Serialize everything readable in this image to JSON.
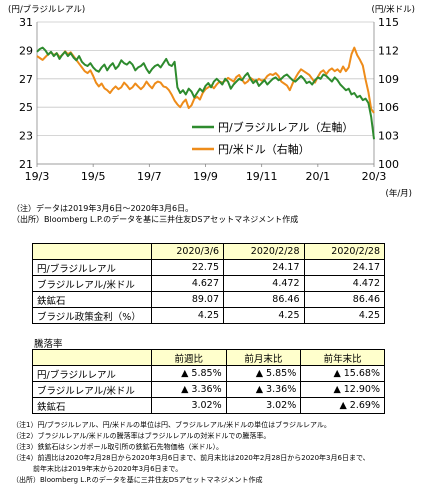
{
  "chart_data": {
    "type": "line",
    "left_axis_unit": "(円/ブラジルレアル)",
    "right_axis_unit": "(円/米ドル)",
    "x_axis_unit": "(年/月)",
    "left_ylim": [
      21,
      31
    ],
    "left_ticks": [
      "21",
      "23",
      "25",
      "27",
      "29",
      "31"
    ],
    "right_ylim": [
      100,
      115
    ],
    "right_ticks": [
      "100",
      "103",
      "106",
      "109",
      "112",
      "115"
    ],
    "x_ticks": [
      "19/3",
      "19/5",
      "19/7",
      "19/9",
      "19/11",
      "20/1",
      "20/3"
    ],
    "legend": [
      "円/ブラジルレアル（左軸）",
      "円/米ドル（右軸）"
    ],
    "series": [
      {
        "name": "円/ブラジルレアル（左軸）",
        "axis": "left",
        "color": "#2e8b2e",
        "x": [
          0,
          0.05,
          0.1,
          0.15,
          0.2,
          0.25,
          0.3,
          0.35,
          0.4,
          0.45,
          0.5,
          0.55,
          0.6,
          0.65,
          0.7,
          0.75,
          0.8,
          0.85,
          0.9,
          0.95,
          1.0,
          1.05,
          1.1,
          1.15,
          1.2,
          1.25,
          1.3,
          1.35,
          1.4,
          1.45,
          1.5,
          1.55,
          1.6,
          1.65,
          1.7,
          1.75,
          1.8,
          1.85,
          1.9,
          1.95,
          2.0,
          2.05,
          2.1,
          2.15,
          2.2,
          2.25,
          2.3,
          2.35,
          2.4,
          2.45,
          2.5,
          2.55,
          2.6,
          2.65,
          2.7,
          2.75,
          2.8,
          2.85,
          2.9,
          2.95,
          3.0,
          3.05,
          3.1,
          3.15,
          3.2,
          3.25,
          3.3,
          3.35,
          3.4,
          3.45,
          3.5,
          3.55,
          3.6,
          3.65,
          3.7,
          3.75,
          3.8,
          3.85,
          3.9,
          3.95,
          4.0,
          4.05,
          4.1,
          4.15,
          4.2,
          4.25,
          4.3,
          4.35,
          4.4,
          4.45,
          4.5,
          4.55,
          4.6,
          4.65,
          4.7,
          4.75,
          4.8,
          4.85,
          4.9,
          4.95,
          5.0,
          5.05,
          5.1,
          5.15,
          5.2,
          5.25,
          5.3,
          5.35,
          5.4,
          5.45,
          5.5,
          5.55,
          5.6,
          5.65,
          5.7,
          5.75,
          5.8,
          5.85,
          5.9,
          5.95,
          6.0
        ],
        "y": [
          28.9,
          29.1,
          29.2,
          29.0,
          28.7,
          28.9,
          28.6,
          28.8,
          28.4,
          28.7,
          28.9,
          28.6,
          28.8,
          28.5,
          28.3,
          28.6,
          28.2,
          28.0,
          27.9,
          28.1,
          27.8,
          27.6,
          27.5,
          27.8,
          28.0,
          27.6,
          27.9,
          28.1,
          27.7,
          27.9,
          28.3,
          28.1,
          28.0,
          28.2,
          28.0,
          27.6,
          27.8,
          27.9,
          28.1,
          27.7,
          27.4,
          27.7,
          27.9,
          28.0,
          27.8,
          28.1,
          28.4,
          28.0,
          27.9,
          28.2,
          26.4,
          26.0,
          26.2,
          25.9,
          26.3,
          26.1,
          25.7,
          26.0,
          26.3,
          26.1,
          26.5,
          26.7,
          26.4,
          26.8,
          27.0,
          26.8,
          26.6,
          27.0,
          26.8,
          26.3,
          26.6,
          26.8,
          27.0,
          26.9,
          27.2,
          27.4,
          27.0,
          26.7,
          26.9,
          26.5,
          26.7,
          26.9,
          26.6,
          26.8,
          27.0,
          27.1,
          26.9,
          27.0,
          27.2,
          27.3,
          27.1,
          26.9,
          26.8,
          27.0,
          27.2,
          27.0,
          26.7,
          26.8,
          26.6,
          26.9,
          27.1,
          27.0,
          27.3,
          27.2,
          27.0,
          26.8,
          27.1,
          26.9,
          26.6,
          26.4,
          26.2,
          26.3,
          25.9,
          26.0,
          25.7,
          25.8,
          25.5,
          25.6,
          25.3,
          24.3,
          22.75
        ]
      },
      {
        "name": "円/米ドル（右軸）",
        "axis": "right",
        "color": "#ee8c1a",
        "x": [
          0,
          0.05,
          0.1,
          0.15,
          0.2,
          0.25,
          0.3,
          0.35,
          0.4,
          0.45,
          0.5,
          0.55,
          0.6,
          0.65,
          0.7,
          0.75,
          0.8,
          0.85,
          0.9,
          0.95,
          1.0,
          1.05,
          1.1,
          1.15,
          1.2,
          1.25,
          1.3,
          1.35,
          1.4,
          1.45,
          1.5,
          1.55,
          1.6,
          1.65,
          1.7,
          1.75,
          1.8,
          1.85,
          1.9,
          1.95,
          2.0,
          2.05,
          2.1,
          2.15,
          2.2,
          2.25,
          2.3,
          2.35,
          2.4,
          2.45,
          2.5,
          2.55,
          2.6,
          2.65,
          2.7,
          2.75,
          2.8,
          2.85,
          2.9,
          2.95,
          3.0,
          3.05,
          3.1,
          3.15,
          3.2,
          3.25,
          3.3,
          3.35,
          3.4,
          3.45,
          3.5,
          3.55,
          3.6,
          3.65,
          3.7,
          3.75,
          3.8,
          3.85,
          3.9,
          3.95,
          4.0,
          4.05,
          4.1,
          4.15,
          4.2,
          4.25,
          4.3,
          4.35,
          4.4,
          4.45,
          4.5,
          4.55,
          4.6,
          4.65,
          4.7,
          4.75,
          4.8,
          4.85,
          4.9,
          4.95,
          5.0,
          5.05,
          5.1,
          5.15,
          5.2,
          5.25,
          5.3,
          5.35,
          5.4,
          5.45,
          5.5,
          5.55,
          5.6,
          5.65,
          5.7,
          5.75,
          5.8,
          5.85,
          5.9,
          5.95,
          6.0
        ],
        "y": [
          111.4,
          111.2,
          111.0,
          111.3,
          111.6,
          111.8,
          111.5,
          111.7,
          111.3,
          111.5,
          111.9,
          111.6,
          111.8,
          111.4,
          111.0,
          110.6,
          110.2,
          109.8,
          109.6,
          109.9,
          109.3,
          108.6,
          108.2,
          108.5,
          108.0,
          107.8,
          107.5,
          107.9,
          108.2,
          107.9,
          108.1,
          108.6,
          108.3,
          107.9,
          108.1,
          108.5,
          108.2,
          107.9,
          108.2,
          108.7,
          108.3,
          108.0,
          108.5,
          108.7,
          108.6,
          108.2,
          108.1,
          107.8,
          107.3,
          106.7,
          106.3,
          106.0,
          106.5,
          106.8,
          105.9,
          106.2,
          106.9,
          107.1,
          106.8,
          107.5,
          107.9,
          108.1,
          108.3,
          108.0,
          108.4,
          108.7,
          108.6,
          108.8,
          109.1,
          108.9,
          108.7,
          109.2,
          109.4,
          108.9,
          108.5,
          108.7,
          109.1,
          108.9,
          108.7,
          109.0,
          108.8,
          108.9,
          109.3,
          109.5,
          109.4,
          109.6,
          109.3,
          108.7,
          108.5,
          108.3,
          107.8,
          108.5,
          109.1,
          109.6,
          110.0,
          109.8,
          109.6,
          109.4,
          109.0,
          108.6,
          109.2,
          109.7,
          109.9,
          109.5,
          109.9,
          110.1,
          109.8,
          110.0,
          109.7,
          110.3,
          109.8,
          110.2,
          111.6,
          112.3,
          111.5,
          111.0,
          110.4,
          108.9,
          107.6,
          105.8,
          105.4
        ]
      }
    ]
  },
  "notes_top": [
    "（注）データは2019年3月6日～2020年3月6日。",
    "（出所）Bloomberg L.P.のデータを基に三井住友DSアセットマネジメント作成"
  ],
  "table1": {
    "headers": [
      "2020/3/6",
      "2020/2/28",
      "2020/2/28"
    ],
    "rows": [
      {
        "label": "円/ブラジルレアル",
        "values": [
          "22.75",
          "24.17",
          "24.17"
        ]
      },
      {
        "label": "ブラジルレアル/米ドル",
        "values": [
          "4.627",
          "4.472",
          "4.472"
        ]
      },
      {
        "label": "鉄鉱石",
        "values": [
          "89.07",
          "86.46",
          "86.46"
        ]
      },
      {
        "label": "ブラジル政策金利（%）",
        "values": [
          "4.25",
          "4.25",
          "4.25"
        ]
      }
    ]
  },
  "table2": {
    "title": "騰落率",
    "headers": [
      "前週比",
      "前月末比",
      "前年末比"
    ],
    "rows": [
      {
        "label": "円/ブラジルレアル",
        "values": [
          "▲ 5.85%",
          "▲ 5.85%",
          "▲ 15.68%"
        ]
      },
      {
        "label": "ブラジルレアル/米ドル",
        "values": [
          "▲ 3.36%",
          "▲ 3.36%",
          "▲ 12.90%"
        ]
      },
      {
        "label": "鉄鉱石",
        "values": [
          "3.02%",
          "3.02%",
          "▲ 2.69%"
        ]
      }
    ]
  },
  "notes_bottom": [
    "（注1）円/ブラジルレアル、円/米ドルの単位は円、ブラジルレアル/米ドルの単位はブラジルレアル。",
    "（注2）ブラジルレアル/米ドルの騰落率はブラジルレアルの対米ドルでの騰落率。",
    "（注3）鉄鉱石はシンガポール取引所の鉄鉱石先物価格（米ドル）。",
    "（注4）前週比は2020年2月28日から2020年3月6日まで、前月末比は2020年2月28日から2020年3月6日まで、",
    "　　　前年末比は2019年末から2020年3月6日まで。",
    "（出所）Bloomberg L.P.のデータを基に三井住友DSアセットマネジメント作成"
  ]
}
